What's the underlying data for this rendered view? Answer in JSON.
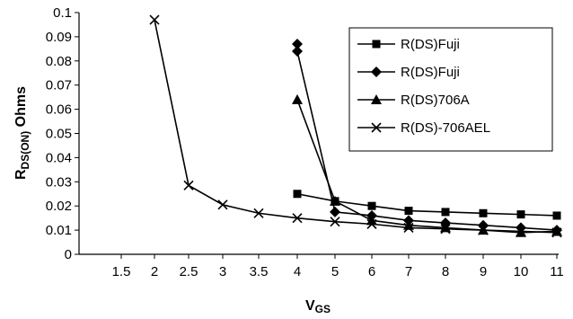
{
  "chart_data": {
    "type": "line",
    "title": "",
    "xlabel": {
      "main": "V",
      "sub": "GS"
    },
    "ylabel": {
      "main_r": "R",
      "sub": "DS(ON)",
      "suffix": " Ohms"
    },
    "xlim": [
      1,
      11
    ],
    "ylim": [
      0,
      0.1
    ],
    "x_ticks": [
      1.5,
      2,
      2.5,
      3,
      3.5,
      4,
      5,
      6,
      7,
      8,
      9,
      10,
      11
    ],
    "y_ticks": [
      0,
      0.01,
      0.02,
      0.03,
      0.04,
      0.05,
      0.06,
      0.07,
      0.08,
      0.09,
      0.1
    ],
    "x_tick_labels": [
      "1.5",
      "2",
      "2.5",
      "3",
      "3.5",
      "4",
      "5",
      "6",
      "7",
      "8",
      "9",
      "10",
      "11"
    ],
    "y_tick_labels": [
      "0",
      "0.01",
      "0.02",
      "0.03",
      "0.04",
      "0.05",
      "0.06",
      "0.07",
      "0.08",
      "0.09",
      "0.1"
    ],
    "grid": false,
    "legend_position": "top-right",
    "series": [
      {
        "name": "R(DS)Fuji",
        "marker": "square",
        "x": [
          4,
          5,
          6,
          7,
          8,
          9,
          10,
          11
        ],
        "y": [
          0.025,
          0.022,
          0.02,
          0.018,
          0.0175,
          0.017,
          0.0165,
          0.016
        ]
      },
      {
        "name": "R(DS)Fuji",
        "marker": "diamond",
        "x": [
          4,
          4,
          5,
          6,
          7,
          8,
          9,
          10,
          11
        ],
        "y": [
          0.087,
          0.084,
          0.0175,
          0.016,
          0.014,
          0.013,
          0.012,
          0.011,
          0.01
        ]
      },
      {
        "name": "R(DS)706A",
        "marker": "triangle",
        "x": [
          4,
          5,
          6,
          7,
          8,
          9,
          10,
          11
        ],
        "y": [
          0.064,
          0.022,
          0.014,
          0.012,
          0.011,
          0.01,
          0.009,
          0.0095
        ]
      },
      {
        "name": "R(DS)-706AEL",
        "marker": "x",
        "x": [
          2,
          2.5,
          3,
          3.5,
          4,
          5,
          6,
          7,
          8,
          9,
          10,
          11
        ],
        "y": [
          0.097,
          0.0285,
          0.0205,
          0.017,
          0.015,
          0.0135,
          0.0125,
          0.011,
          0.0105,
          0.01,
          0.0095,
          0.009
        ]
      }
    ]
  }
}
